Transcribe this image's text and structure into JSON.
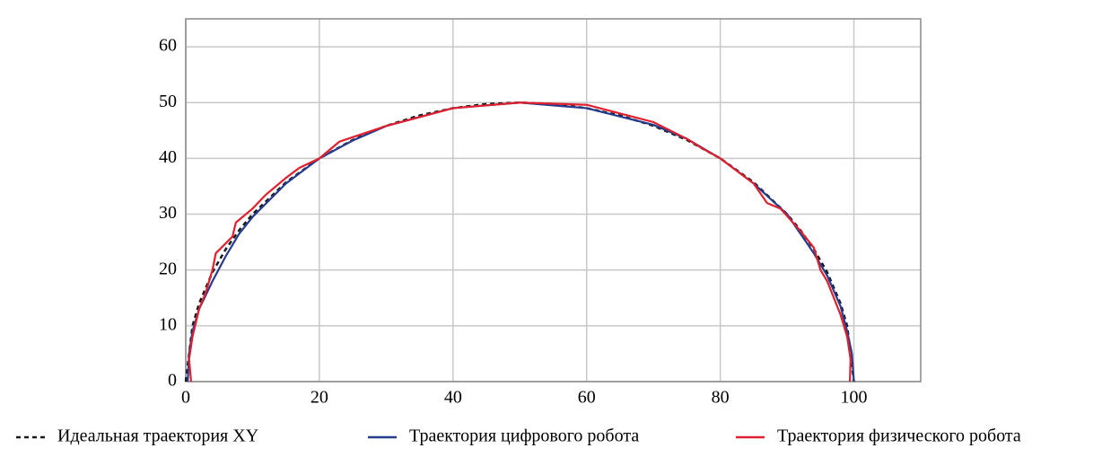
{
  "chart_data": {
    "type": "line",
    "xlim": [
      0,
      110
    ],
    "ylim": [
      0,
      65
    ],
    "xticks": [
      0,
      20,
      40,
      60,
      80,
      100
    ],
    "yticks": [
      0,
      10,
      20,
      30,
      40,
      50,
      60
    ],
    "grid": true,
    "legend": "bottom",
    "series": [
      {
        "name": "Идеальная траектория XY",
        "color": "#1a1a1a",
        "dashed": true,
        "x": [
          0,
          1,
          2,
          4,
          6,
          8,
          10,
          15,
          20,
          25,
          30,
          35,
          40,
          45,
          50,
          55,
          60,
          65,
          70,
          75,
          80,
          85,
          90,
          92,
          94,
          96,
          98,
          99,
          100
        ],
        "values": [
          0,
          9.95,
          14,
          19.6,
          23.75,
          27.13,
          30,
          35.71,
          40,
          43.3,
          45.83,
          47.7,
          48.99,
          49.75,
          50,
          49.75,
          48.99,
          47.7,
          45.83,
          43.3,
          40,
          35.71,
          30,
          27.13,
          23.75,
          19.6,
          14,
          9.95,
          0
        ]
      },
      {
        "name": "Траектория цифрового робота",
        "color": "#253b8c",
        "dashed": false,
        "x": [
          0.3,
          0.5,
          1,
          2,
          4,
          6,
          8,
          10,
          15,
          20,
          25,
          30,
          40,
          50,
          60,
          70,
          75,
          80,
          85,
          90,
          92,
          94,
          96,
          98,
          99,
          99.7,
          100
        ],
        "values": [
          0,
          5,
          9,
          13,
          18,
          22.5,
          26.5,
          29.5,
          35.5,
          40,
          43.2,
          45.8,
          49,
          50,
          49,
          46,
          43.5,
          40,
          35.5,
          30,
          26.5,
          23,
          19,
          13.5,
          9,
          5,
          0
        ]
      },
      {
        "name": "Траектория физического робота",
        "color": "#e0202e",
        "dashed": false,
        "x": [
          0.8,
          0.5,
          1,
          2,
          3,
          4,
          4.5,
          7,
          7.5,
          10,
          12,
          15,
          17,
          20,
          23,
          30,
          40,
          50,
          60,
          70,
          75,
          77,
          80,
          85,
          87,
          89,
          92,
          94,
          95,
          96,
          97,
          98,
          99,
          99.5,
          99.4
        ],
        "values": [
          0,
          4,
          8,
          13,
          16,
          20,
          23,
          26,
          28.5,
          31,
          33.5,
          36.5,
          38.3,
          40,
          43,
          45.8,
          49,
          50,
          49.6,
          46.5,
          43.5,
          42,
          40,
          35.5,
          32,
          31,
          27,
          24,
          20,
          18,
          15,
          12,
          8,
          4,
          0
        ]
      }
    ]
  }
}
